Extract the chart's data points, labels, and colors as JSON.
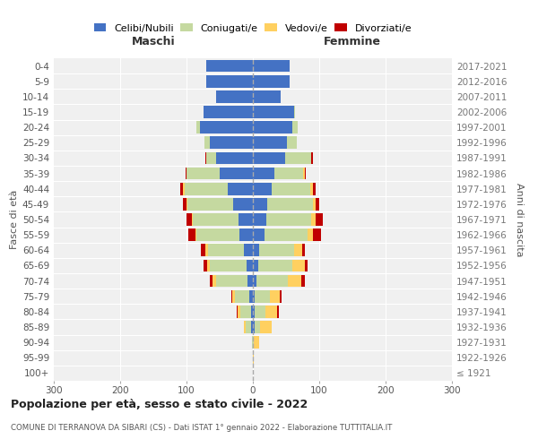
{
  "age_groups": [
    "100+",
    "95-99",
    "90-94",
    "85-89",
    "80-84",
    "75-79",
    "70-74",
    "65-69",
    "60-64",
    "55-59",
    "50-54",
    "45-49",
    "40-44",
    "35-39",
    "30-34",
    "25-29",
    "20-24",
    "15-19",
    "10-14",
    "5-9",
    "0-4"
  ],
  "birth_years": [
    "≤ 1921",
    "1922-1926",
    "1927-1931",
    "1932-1936",
    "1937-1941",
    "1942-1946",
    "1947-1951",
    "1952-1956",
    "1957-1961",
    "1962-1966",
    "1967-1971",
    "1972-1976",
    "1977-1981",
    "1982-1986",
    "1987-1991",
    "1992-1996",
    "1997-2001",
    "2002-2006",
    "2007-2011",
    "2012-2016",
    "2017-2021"
  ],
  "maschi": {
    "celibi": [
      0,
      0,
      0,
      3,
      3,
      5,
      8,
      10,
      13,
      20,
      22,
      30,
      38,
      50,
      55,
      65,
      80,
      75,
      55,
      70,
      70
    ],
    "coniugati": [
      0,
      0,
      2,
      8,
      16,
      22,
      48,
      55,
      55,
      65,
      68,
      68,
      65,
      50,
      15,
      8,
      5,
      0,
      0,
      0,
      0
    ],
    "vedovi": [
      0,
      0,
      0,
      2,
      4,
      4,
      5,
      4,
      4,
      2,
      2,
      2,
      2,
      0,
      0,
      0,
      0,
      0,
      0,
      0,
      0
    ],
    "divorziati": [
      0,
      0,
      0,
      0,
      2,
      2,
      4,
      6,
      6,
      10,
      8,
      6,
      4,
      2,
      2,
      0,
      0,
      0,
      0,
      0,
      0
    ]
  },
  "femmine": {
    "nubili": [
      0,
      0,
      0,
      3,
      3,
      3,
      5,
      8,
      10,
      18,
      20,
      22,
      28,
      32,
      48,
      52,
      60,
      62,
      42,
      55,
      55
    ],
    "coniugate": [
      0,
      0,
      2,
      8,
      16,
      22,
      48,
      52,
      52,
      65,
      68,
      68,
      58,
      44,
      40,
      14,
      8,
      2,
      0,
      0,
      0
    ],
    "vedove": [
      0,
      2,
      8,
      18,
      18,
      16,
      20,
      18,
      12,
      8,
      6,
      4,
      4,
      2,
      0,
      0,
      0,
      0,
      0,
      0,
      0
    ],
    "divorziate": [
      0,
      0,
      0,
      0,
      2,
      2,
      6,
      4,
      4,
      12,
      12,
      6,
      4,
      2,
      2,
      0,
      0,
      0,
      0,
      0,
      0
    ]
  },
  "colors": {
    "celibi": "#4472C4",
    "coniugati": "#C5D9A0",
    "vedovi": "#FFD060",
    "divorziati": "#C00000"
  },
  "xlim": 300,
  "title": "Popolazione per età, sesso e stato civile - 2022",
  "subtitle": "COMUNE DI TERRANOVA DA SIBARI (CS) - Dati ISTAT 1° gennaio 2022 - Elaborazione TUTTITALIA.IT",
  "ylabel_left": "Fasce di età",
  "ylabel_right": "Anni di nascita",
  "label_maschi": "Maschi",
  "label_femmine": "Femmine",
  "bg_color": "#f0f0f0",
  "grid_color": "#ffffff"
}
